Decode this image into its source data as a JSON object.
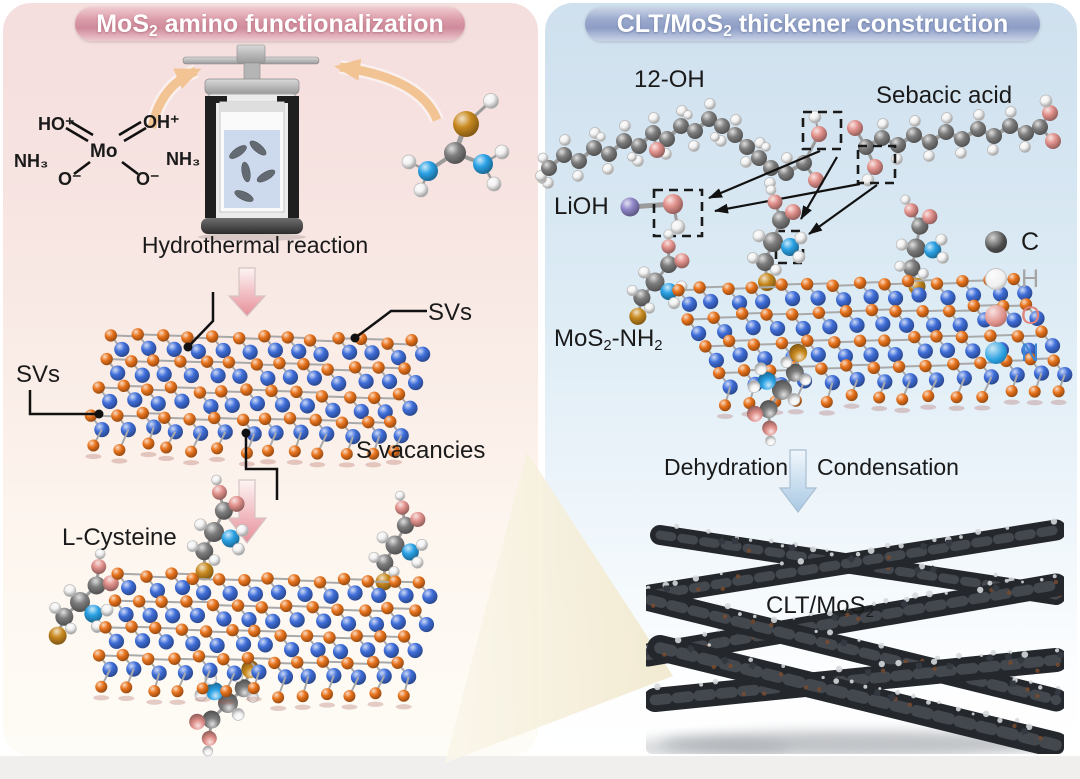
{
  "left_panel": {
    "title": {
      "pre": "MoS",
      "sub": "2",
      "post": " amino functionalization"
    },
    "precursor": {
      "center": "Mo",
      "top_left": "HO⁺",
      "top_right": "OH⁺",
      "left": "NH₃",
      "right": "NH₃",
      "bottom_left": "O⁻",
      "bottom_right": "O⁻"
    },
    "reactor_caption": "Hydrothermal reaction",
    "sv_label_left": "SVs",
    "sv_label_right": "SVs",
    "s_vacancies_label": "S vacancies",
    "cysteine_label": "L-Cysteine"
  },
  "right_panel": {
    "title": {
      "pre": "CLT/MoS",
      "sub": "2",
      "post": " thickener construction"
    },
    "label_12oh": "12-OH",
    "label_sebacic": "Sebacic acid",
    "label_lioh": "LiOH",
    "label_mos2nh2": {
      "pre": "MoS",
      "sub1": "2",
      "mid": "-NH",
      "sub2": "2"
    },
    "process_left": "Dehydration",
    "process_right": "Condensation",
    "product_label": {
      "pre": "CLT/MoS",
      "sub": "2"
    },
    "legend": {
      "items": [
        {
          "symbol": "C",
          "sphere": "#4b4b4b",
          "label_color": "#1a1a1a"
        },
        {
          "symbol": "H",
          "sphere": "#f0f0f0",
          "label_color": "#a5a5a5"
        },
        {
          "symbol": "O",
          "sphere": "#e0908a",
          "label_color": "#e0837b"
        },
        {
          "symbol": "N",
          "sphere": "#29a0e0",
          "label_color": "#3c86d6"
        }
      ]
    }
  },
  "atom_colors": {
    "S": "#e8731c",
    "Mo": "#3f6ed9",
    "C": "#7d7d7d",
    "H": "#f2f2f2",
    "O": "#e2918c",
    "N": "#2aa2e5",
    "S2": "#c8891f",
    "Li": "#8f86c8",
    "bond": "#9b9b9b"
  }
}
